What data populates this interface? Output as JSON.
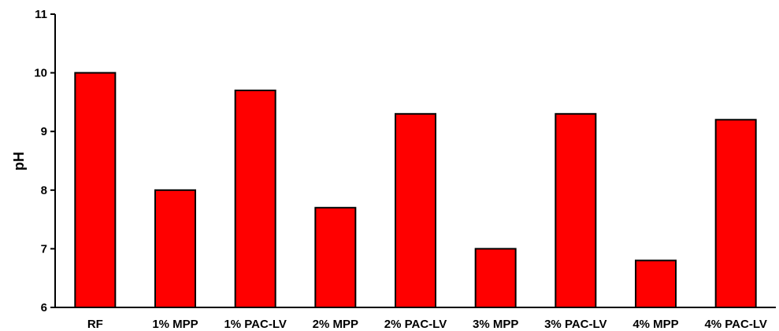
{
  "chart_data": {
    "type": "bar",
    "title": "",
    "xlabel": "",
    "ylabel": "pH",
    "ylim": [
      6,
      11
    ],
    "yticks": [
      6,
      7,
      8,
      9,
      10,
      11
    ],
    "grid": false,
    "categories": [
      "RF",
      "1% MPP",
      "1% PAC-LV",
      "2% MPP",
      "2% PAC-LV",
      "3% MPP",
      "3% PAC-LV",
      "4% MPP",
      "4% PAC-LV"
    ],
    "values": [
      10.0,
      8.0,
      9.7,
      7.7,
      9.3,
      7.0,
      9.3,
      6.8,
      9.2
    ],
    "bar_color": "#ff0000",
    "bar_edge_color": "#000000"
  }
}
